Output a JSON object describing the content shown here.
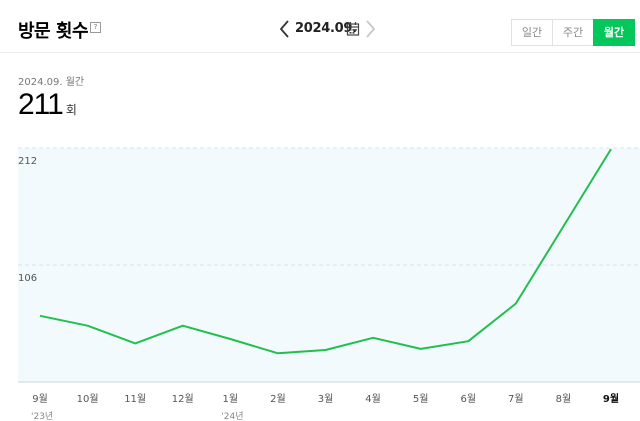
{
  "header": {
    "title": "방문 횟수",
    "help_glyph": "?",
    "date_label": "2024.09.",
    "period_tabs": [
      {
        "label": "일간",
        "active": false
      },
      {
        "label": "주간",
        "active": false
      },
      {
        "label": "월간",
        "active": true
      }
    ]
  },
  "summary": {
    "period": "2024.09. 월간",
    "value": "211",
    "unit": "회"
  },
  "colors": {
    "accent": "#03c75a",
    "line": "#22bf4f",
    "plot_bg": "#f3fafd",
    "grid": "#d7e3ea"
  },
  "chart_data": {
    "type": "line",
    "categories": [
      "9월",
      "10월",
      "11월",
      "12월",
      "1월",
      "2월",
      "3월",
      "4월",
      "5월",
      "6월",
      "7월",
      "8월",
      "9월"
    ],
    "year_labels": [
      {
        "index": 0,
        "label": "'23년"
      },
      {
        "index": 4,
        "label": "'24년"
      }
    ],
    "values": [
      60,
      51,
      35,
      51,
      39,
      26,
      29,
      40,
      30,
      37,
      71,
      141,
      211
    ],
    "ylim": [
      0,
      212
    ],
    "yticks": [
      106,
      212
    ],
    "ytick_labels": [
      "106",
      "212"
    ],
    "highlight_last": true,
    "grid": true
  }
}
